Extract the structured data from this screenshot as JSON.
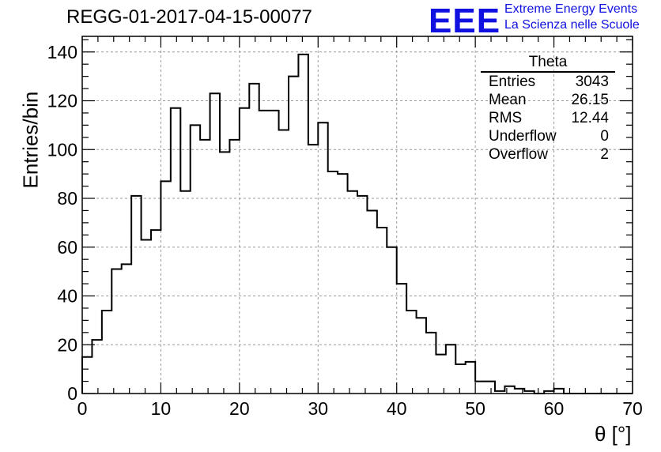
{
  "title": "REGG-01-2017-04-15-00077",
  "logo": {
    "mark": "EEE",
    "line1": "Extreme Energy Events",
    "line2": "La Scienza nelle Scuole",
    "color": "#1010e0"
  },
  "stats": {
    "title": "Theta",
    "rows": [
      {
        "label": "Entries",
        "value": "3043"
      },
      {
        "label": "Mean",
        "value": "26.15"
      },
      {
        "label": "RMS",
        "value": "12.44"
      },
      {
        "label": "Underflow",
        "value": "0"
      },
      {
        "label": "Overflow",
        "value": "2"
      }
    ]
  },
  "chart_data": {
    "type": "bar",
    "title": "REGG-01-2017-04-15-00077",
    "xlabel": "θ [°]",
    "ylabel": "Entries/bin",
    "xlim": [
      0,
      70
    ],
    "ylim": [
      0,
      145
    ],
    "x_ticks": [
      0,
      10,
      20,
      30,
      40,
      50,
      60,
      70
    ],
    "y_ticks": [
      0,
      20,
      40,
      60,
      80,
      100,
      120,
      140
    ],
    "bin_width": 1.25,
    "bin_start": 0,
    "values": [
      15,
      22,
      34,
      51,
      53,
      81,
      63,
      67,
      87,
      117,
      83,
      110,
      104,
      123,
      99,
      104,
      117,
      127,
      116,
      116,
      108,
      130,
      139,
      102,
      111,
      91,
      90,
      83,
      81,
      75,
      68,
      60,
      45,
      34,
      31,
      25,
      16,
      20,
      12,
      13,
      5,
      5,
      1,
      3,
      2,
      1,
      0,
      1,
      2,
      0,
      0,
      0,
      0,
      0,
      0,
      0
    ],
    "grid": true,
    "style": "step-histogram",
    "line_color": "#000000"
  }
}
